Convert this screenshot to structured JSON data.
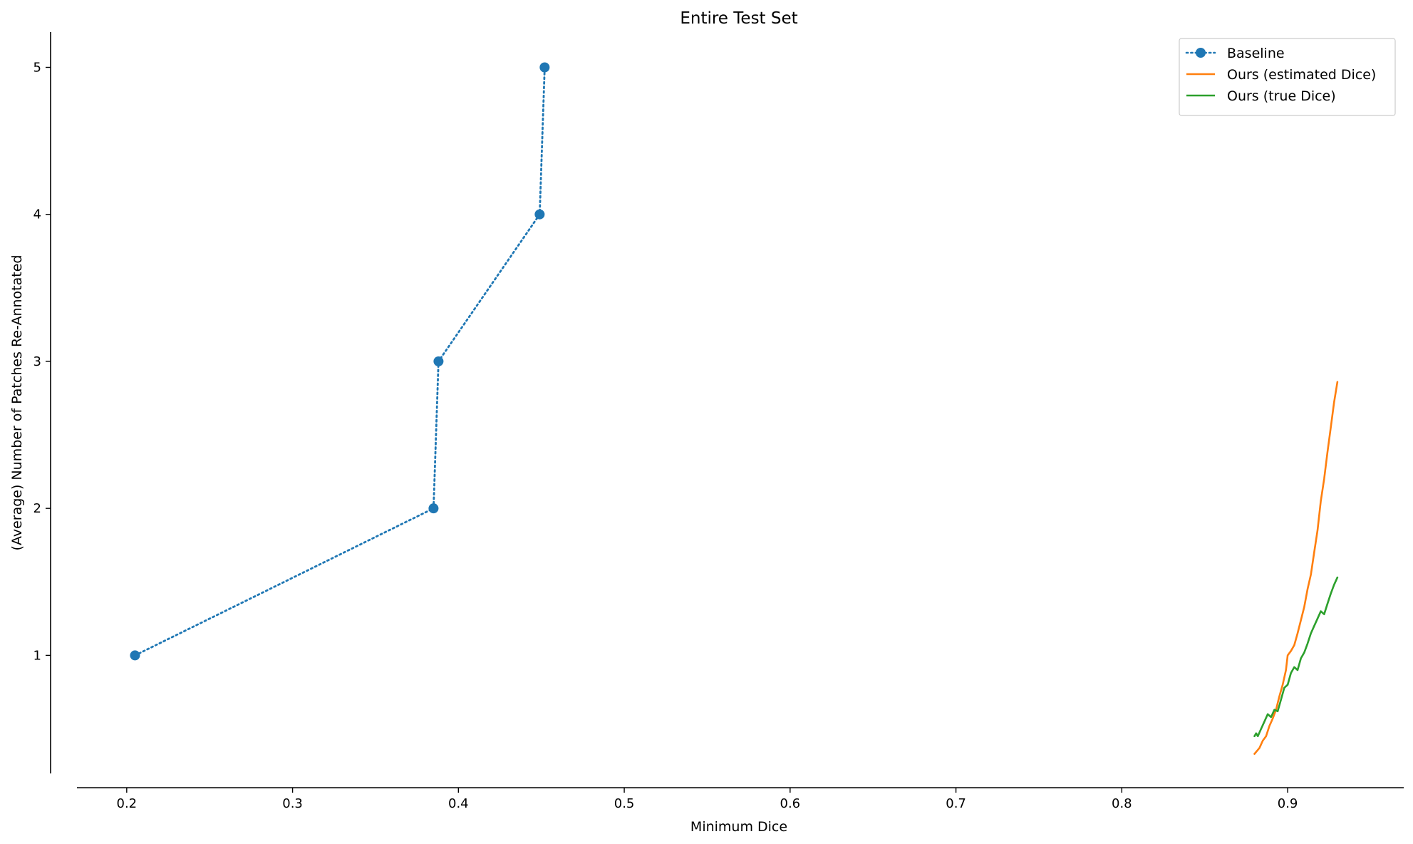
{
  "chart_data": {
    "type": "line",
    "title": "Entire Test Set",
    "xlabel": "Minimum Dice",
    "ylabel": "(Average) Number of Patches Re-Annotated",
    "xlim": [
      0.17,
      0.97
    ],
    "ylim": [
      0.1,
      5.24
    ],
    "x_ticks": [
      0.2,
      0.3,
      0.4,
      0.5,
      0.6,
      0.7,
      0.8,
      0.9
    ],
    "x_tick_labels": [
      "0.2",
      "0.3",
      "0.4",
      "0.5",
      "0.6",
      "0.7",
      "0.8",
      "0.9"
    ],
    "y_ticks": [
      1,
      2,
      3,
      4,
      5
    ],
    "y_tick_labels": [
      "1",
      "2",
      "3",
      "4",
      "5"
    ],
    "grid": false,
    "legend_position": "top-right",
    "series": [
      {
        "name": "Baseline",
        "color": "#1f77b4",
        "line_style": "dotted",
        "marker": "circle",
        "x": [
          0.205,
          0.385,
          0.388,
          0.449,
          0.452
        ],
        "y": [
          1,
          2,
          3,
          4,
          5
        ]
      },
      {
        "name": "Ours (estimated Dice)",
        "color": "#ff7f0e",
        "line_style": "solid",
        "marker": "none",
        "x": [
          0.88,
          0.883,
          0.885,
          0.887,
          0.889,
          0.891,
          0.893,
          0.895,
          0.897,
          0.899,
          0.9,
          0.902,
          0.904,
          0.906,
          0.908,
          0.91,
          0.912,
          0.914,
          0.916,
          0.918,
          0.92,
          0.922,
          0.924,
          0.926,
          0.928,
          0.93
        ],
        "y": [
          0.33,
          0.37,
          0.42,
          0.45,
          0.52,
          0.57,
          0.63,
          0.72,
          0.8,
          0.9,
          1.0,
          1.03,
          1.07,
          1.15,
          1.24,
          1.33,
          1.45,
          1.55,
          1.7,
          1.85,
          2.05,
          2.2,
          2.38,
          2.55,
          2.72,
          2.86
        ]
      },
      {
        "name": "Ours (true Dice)",
        "color": "#2ca02c",
        "line_style": "solid",
        "marker": "none",
        "x": [
          0.88,
          0.881,
          0.882,
          0.884,
          0.886,
          0.888,
          0.89,
          0.892,
          0.894,
          0.896,
          0.898,
          0.9,
          0.902,
          0.904,
          0.906,
          0.908,
          0.91,
          0.912,
          0.914,
          0.916,
          0.918,
          0.92,
          0.922,
          0.924,
          0.926,
          0.928,
          0.93
        ],
        "y": [
          0.45,
          0.47,
          0.45,
          0.5,
          0.55,
          0.6,
          0.58,
          0.63,
          0.62,
          0.7,
          0.78,
          0.8,
          0.88,
          0.92,
          0.9,
          0.98,
          1.02,
          1.08,
          1.15,
          1.2,
          1.25,
          1.3,
          1.28,
          1.35,
          1.42,
          1.48,
          1.53
        ]
      }
    ]
  }
}
